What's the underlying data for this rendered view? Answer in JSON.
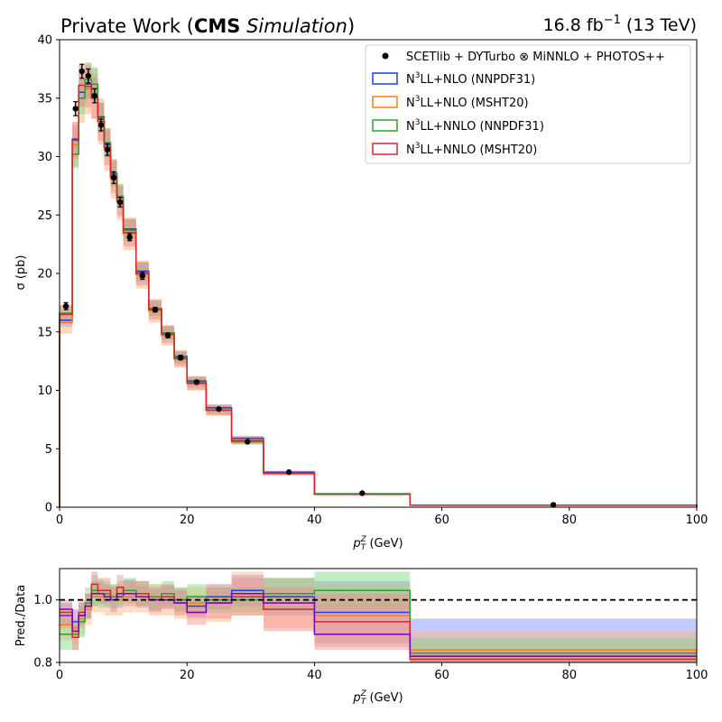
{
  "header": {
    "left_prefix": "Private Work (",
    "left_bold": "CMS",
    "left_italic": "Simulation",
    "left_suffix": ")",
    "right_lumi": "16.8 fb",
    "right_exp": "−1",
    "right_energy": " (13 TeV)"
  },
  "chart_data": [
    {
      "type": "line",
      "xlabel_main": "p",
      "xlabel_sub": "T",
      "xlabel_sup": "Z",
      "xlabel_unit": " (GeV)",
      "ylabel": "σ (pb)",
      "xlim": [
        0,
        100
      ],
      "ylim": [
        0,
        40
      ],
      "xticks": [
        0,
        20,
        40,
        60,
        80,
        100
      ],
      "yticks": [
        0,
        5,
        10,
        15,
        20,
        25,
        30,
        35,
        40
      ],
      "bin_edges": [
        0,
        2,
        3,
        4,
        5,
        6,
        7,
        8,
        9,
        10,
        12,
        14,
        16,
        18,
        20,
        23,
        27,
        32,
        40,
        55,
        100
      ],
      "legend_position": "top-right",
      "data_series": {
        "name": "SCETlib + DYTurbo ⊗ MiNNLO + PHOTOS++",
        "color": "#000000",
        "x": [
          1.0,
          2.5,
          3.5,
          4.5,
          5.5,
          6.5,
          7.5,
          8.5,
          9.5,
          11.0,
          13.0,
          15.0,
          17.0,
          19.0,
          21.5,
          25.0,
          29.5,
          36.0,
          47.5,
          77.5
        ],
        "y": [
          17.2,
          34.1,
          37.3,
          36.9,
          35.2,
          32.7,
          30.6,
          28.2,
          26.1,
          23.1,
          19.8,
          16.9,
          14.7,
          12.8,
          10.7,
          8.4,
          5.6,
          3.0,
          1.2,
          0.2
        ],
        "yerr": [
          0.3,
          0.6,
          0.6,
          0.6,
          0.6,
          0.5,
          0.5,
          0.5,
          0.4,
          0.3,
          0.3,
          0.2,
          0.2,
          0.2,
          0.15,
          0.1,
          0.1,
          0.05,
          0.03,
          0.01
        ]
      },
      "series": [
        {
          "name": "N³LL+NLO (NNPDF31)",
          "label_base": "N",
          "label_sup": "3",
          "label_rest": "LL+NLO (NNPDF31)",
          "color": "#1f3fe6",
          "band_color": "#6f86ff",
          "values": [
            16.0,
            31.5,
            35.5,
            36.2,
            35.8,
            33.4,
            31.0,
            28.5,
            26.5,
            23.8,
            20.2,
            17.0,
            14.9,
            12.9,
            10.8,
            8.5,
            5.9,
            3.0,
            1.15,
            0.17
          ],
          "rel_unc": 0.035
        },
        {
          "name": "N³LL+NLO (MSHT20)",
          "label_base": "N",
          "label_sup": "3",
          "label_rest": "LL+NLO (MSHT20)",
          "color": "#ff7f0e",
          "band_color": "#ffb27a",
          "values": [
            15.8,
            31.0,
            35.0,
            35.8,
            35.4,
            33.0,
            30.6,
            28.1,
            26.1,
            23.4,
            19.9,
            16.8,
            14.7,
            12.7,
            10.6,
            8.3,
            5.7,
            2.9,
            1.1,
            0.17
          ],
          "rel_unc": 0.06
        },
        {
          "name": "N³LL+NNLO (NNPDF31)",
          "label_base": "N",
          "label_sup": "3",
          "label_rest": "LL+NNLO (NNPDF31)",
          "color": "#2ca02c",
          "band_color": "#7fd67f",
          "values": [
            16.6,
            30.2,
            35.0,
            36.6,
            36.2,
            33.3,
            31.2,
            28.6,
            26.6,
            23.7,
            20.1,
            17.0,
            14.9,
            12.8,
            10.7,
            8.3,
            5.6,
            2.9,
            1.15,
            0.17
          ],
          "rel_unc": 0.04
        },
        {
          "name": "N³LL+NNLO (MSHT20)",
          "label_base": "N",
          "label_sup": "3",
          "label_rest": "LL+NNLO (MSHT20)",
          "color": "#d62728",
          "band_color": "#f08a8a",
          "values": [
            16.5,
            31.4,
            36.1,
            36.0,
            35.0,
            33.0,
            30.8,
            28.3,
            26.2,
            23.5,
            20.0,
            16.9,
            14.8,
            12.7,
            10.6,
            8.3,
            5.7,
            2.9,
            1.1,
            0.17
          ],
          "rel_unc": 0.05
        }
      ]
    },
    {
      "type": "line",
      "xlabel_main": "p",
      "xlabel_sub": "T",
      "xlabel_sup": "Z",
      "xlabel_unit": " (GeV)",
      "ylabel": "Pred./Data",
      "xlim": [
        0,
        100
      ],
      "ylim": [
        0.8,
        1.1
      ],
      "xticks": [
        0,
        20,
        40,
        60,
        80,
        100
      ],
      "yticks": [
        0.8,
        1.0
      ],
      "reference_line": 1.0,
      "ratios": [
        {
          "color": "#1f3fe6",
          "band_color": "#7b8cff",
          "values": [
            0.95,
            0.93,
            0.95,
            0.98,
            1.02,
            1.02,
            1.01,
            1.01,
            1.01,
            1.03,
            1.01,
            1.0,
            1.01,
            1.0,
            0.98,
            1.01,
            1.03,
            1.01,
            0.96,
            0.82
          ],
          "unc": [
            0.04,
            0.04,
            0.04,
            0.04,
            0.04,
            0.035,
            0.035,
            0.035,
            0.035,
            0.035,
            0.035,
            0.035,
            0.035,
            0.035,
            0.035,
            0.04,
            0.05,
            0.06,
            0.1,
            0.12
          ]
        },
        {
          "color": "#ff7f0e",
          "band_color": "#ffb27a",
          "values": [
            0.92,
            0.91,
            0.94,
            0.97,
            1.01,
            1.01,
            1.0,
            1.0,
            1.0,
            1.01,
            1.01,
            1.0,
            1.0,
            0.99,
            0.99,
            0.99,
            1.02,
            0.99,
            0.95,
            0.84
          ],
          "unc": [
            0.05,
            0.05,
            0.05,
            0.05,
            0.05,
            0.05,
            0.05,
            0.05,
            0.05,
            0.05,
            0.05,
            0.05,
            0.05,
            0.05,
            0.05,
            0.06,
            0.07,
            0.08,
            0.1,
            0.06
          ]
        },
        {
          "color": "#2ca02c",
          "band_color": "#7fd67f",
          "values": [
            0.89,
            0.89,
            0.93,
            0.99,
            1.03,
            1.02,
            1.02,
            1.01,
            1.02,
            1.03,
            1.02,
            1.01,
            1.02,
            1.0,
            1.01,
            1.0,
            1.0,
            1.02,
            1.03,
            0.83
          ],
          "unc": [
            0.05,
            0.05,
            0.05,
            0.05,
            0.05,
            0.045,
            0.04,
            0.04,
            0.04,
            0.04,
            0.04,
            0.04,
            0.04,
            0.04,
            0.04,
            0.04,
            0.04,
            0.05,
            0.06,
            0.05
          ]
        },
        {
          "color": "#d62728",
          "band_color": "#f08a8a",
          "values": [
            0.96,
            0.88,
            0.96,
            0.98,
            1.05,
            1.03,
            1.03,
            1.0,
            1.04,
            1.02,
            1.02,
            1.0,
            1.01,
            0.99,
            0.96,
            0.99,
            1.01,
            0.97,
            0.93,
            0.81
          ],
          "unc": [
            0.04,
            0.04,
            0.04,
            0.04,
            0.04,
            0.04,
            0.04,
            0.04,
            0.04,
            0.04,
            0.04,
            0.04,
            0.04,
            0.04,
            0.04,
            0.05,
            0.06,
            0.07,
            0.09,
            0.03
          ]
        },
        {
          "color": "#8000c0",
          "band_color": null,
          "values": [
            0.97,
            0.9,
            0.95,
            0.98,
            1.02,
            1.02,
            1.01,
            1.0,
            1.02,
            1.02,
            1.01,
            1.0,
            1.0,
            0.99,
            0.96,
            0.99,
            1.02,
            0.99,
            0.89,
            0.82
          ],
          "unc": []
        }
      ]
    }
  ]
}
